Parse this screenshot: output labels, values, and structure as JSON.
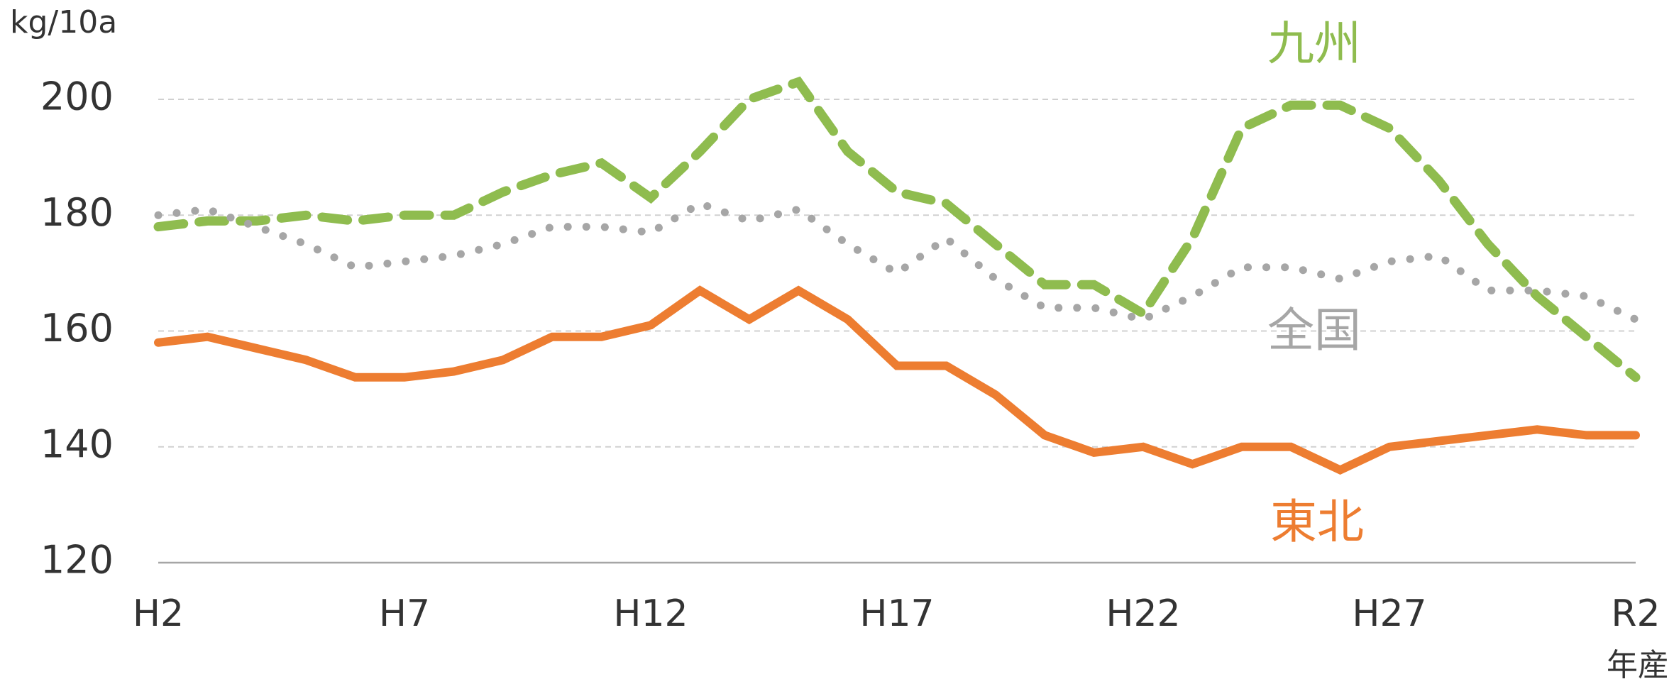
{
  "chart_data": {
    "type": "line",
    "y_label": "kg/10a",
    "x_label": "年産",
    "categories": [
      "H2",
      null,
      null,
      null,
      null,
      "H7",
      null,
      null,
      null,
      null,
      "H12",
      null,
      null,
      null,
      null,
      "H17",
      null,
      null,
      null,
      null,
      "H22",
      null,
      null,
      null,
      null,
      "H27",
      null,
      null,
      null,
      null,
      "R2"
    ],
    "ylim": [
      120,
      200
    ],
    "yticks": [
      120,
      140,
      160,
      180,
      200
    ],
    "grid": true,
    "series": [
      {
        "name": "九州",
        "color": "#8fbc4f",
        "style": "dashed",
        "values": [
          178,
          179,
          179,
          180,
          179,
          180,
          180,
          184,
          187,
          189,
          183,
          191,
          200,
          203,
          191,
          184,
          182,
          175,
          168,
          168,
          163,
          176,
          195,
          199,
          199,
          195,
          186,
          175,
          166,
          159,
          152
        ]
      },
      {
        "name": "全国",
        "color": "#a6a6a6",
        "style": "dotted",
        "values": [
          180,
          181,
          178,
          175,
          171,
          172,
          173,
          175,
          178,
          178,
          177,
          182,
          179,
          181,
          175,
          170,
          176,
          169,
          164,
          164,
          162,
          166,
          171,
          171,
          169,
          172,
          173,
          167,
          167,
          166,
          162
        ]
      },
      {
        "name": "東北",
        "color": "#ed7d31",
        "style": "solid",
        "values": [
          158,
          159,
          157,
          155,
          152,
          152,
          153,
          155,
          159,
          159,
          161,
          167,
          162,
          167,
          162,
          154,
          154,
          149,
          142,
          139,
          140,
          137,
          140,
          140,
          136,
          140,
          141,
          142,
          143,
          142,
          142
        ]
      }
    ]
  }
}
